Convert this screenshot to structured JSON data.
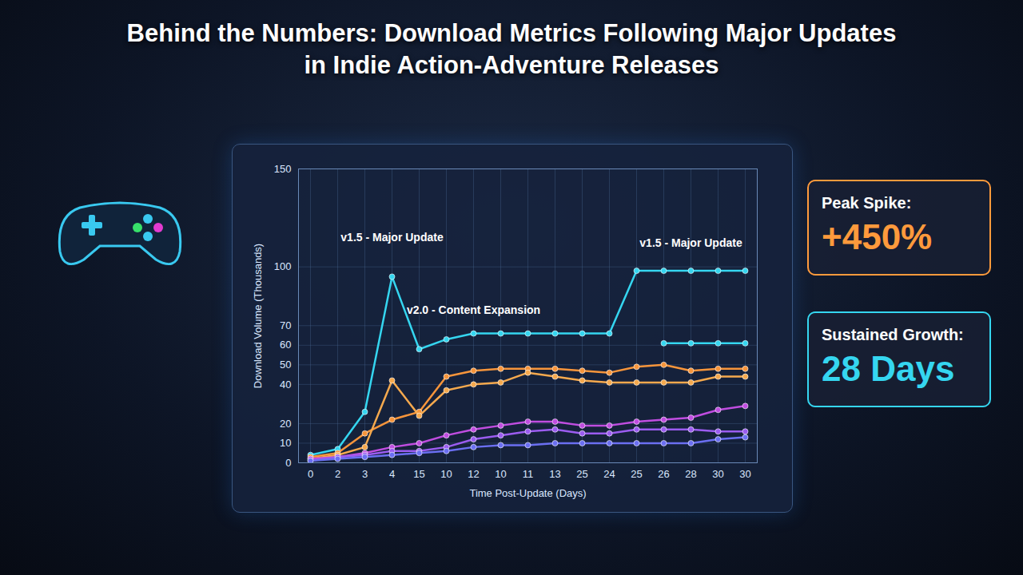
{
  "chart_data": {
    "type": "line",
    "title": "Behind the Numbers: Download Metrics Following Major Updates in Indie Action-Adventure Releases",
    "x_label": "Time Post-Update (Days)",
    "y_label": "Download Volume (Thousands)",
    "categories": [
      "0",
      "2",
      "3",
      "4",
      "15",
      "10",
      "12",
      "10",
      "11",
      "13",
      "25",
      "24",
      "25",
      "26",
      "28",
      "30",
      "30"
    ],
    "ylim": [
      0,
      150
    ],
    "yticks": [
      0,
      10,
      20,
      40,
      50,
      60,
      70,
      100,
      150
    ],
    "grid": true,
    "marker": "circle",
    "series": [
      {
        "color": "#35d6f0",
        "values": [
          4,
          7,
          26,
          95,
          58,
          63,
          66,
          66,
          66,
          66,
          66,
          66,
          98,
          98,
          98,
          98,
          98
        ]
      },
      {
        "color": "#35d6f0",
        "values": [
          null,
          null,
          null,
          null,
          null,
          null,
          null,
          null,
          null,
          null,
          null,
          null,
          null,
          61,
          61,
          61,
          61
        ]
      },
      {
        "color": "#f7953b",
        "values": [
          3,
          5,
          15,
          22,
          26,
          44,
          47,
          48,
          48,
          48,
          47,
          46,
          49,
          50,
          47,
          48,
          48
        ]
      },
      {
        "color": "#f5a94e",
        "values": [
          2,
          4,
          8,
          42,
          24,
          37,
          40,
          41,
          46,
          44,
          42,
          41,
          41,
          41,
          41,
          44,
          44
        ]
      },
      {
        "color": "#c04de0",
        "values": [
          2,
          3,
          5,
          8,
          10,
          14,
          17,
          19,
          21,
          21,
          19,
          19,
          21,
          22,
          23,
          27,
          29
        ]
      },
      {
        "color": "#9b5cf0",
        "values": [
          1,
          3,
          4,
          6,
          6,
          8,
          12,
          14,
          16,
          17,
          15,
          15,
          17,
          17,
          17,
          16,
          16
        ]
      },
      {
        "color": "#6b6ff2",
        "values": [
          1,
          2,
          3,
          4,
          5,
          6,
          8,
          9,
          9,
          10,
          10,
          10,
          10,
          10,
          10,
          12,
          13
        ]
      }
    ],
    "annotations": [
      {
        "text": "v1.5 - Major Update",
        "x": "4",
        "y": 115
      },
      {
        "text": "v2.0 - Content Expansion",
        "x": "12",
        "y": 78
      },
      {
        "text": "v1.5 - Major Update",
        "x": "28",
        "y": 112
      }
    ]
  },
  "panels": [
    {
      "label": "Peak Spike:",
      "value": "+450%",
      "color": "#ff9a3c"
    },
    {
      "label": "Sustained Growth:",
      "value": "28 Days",
      "color": "#35d6f0"
    }
  ]
}
